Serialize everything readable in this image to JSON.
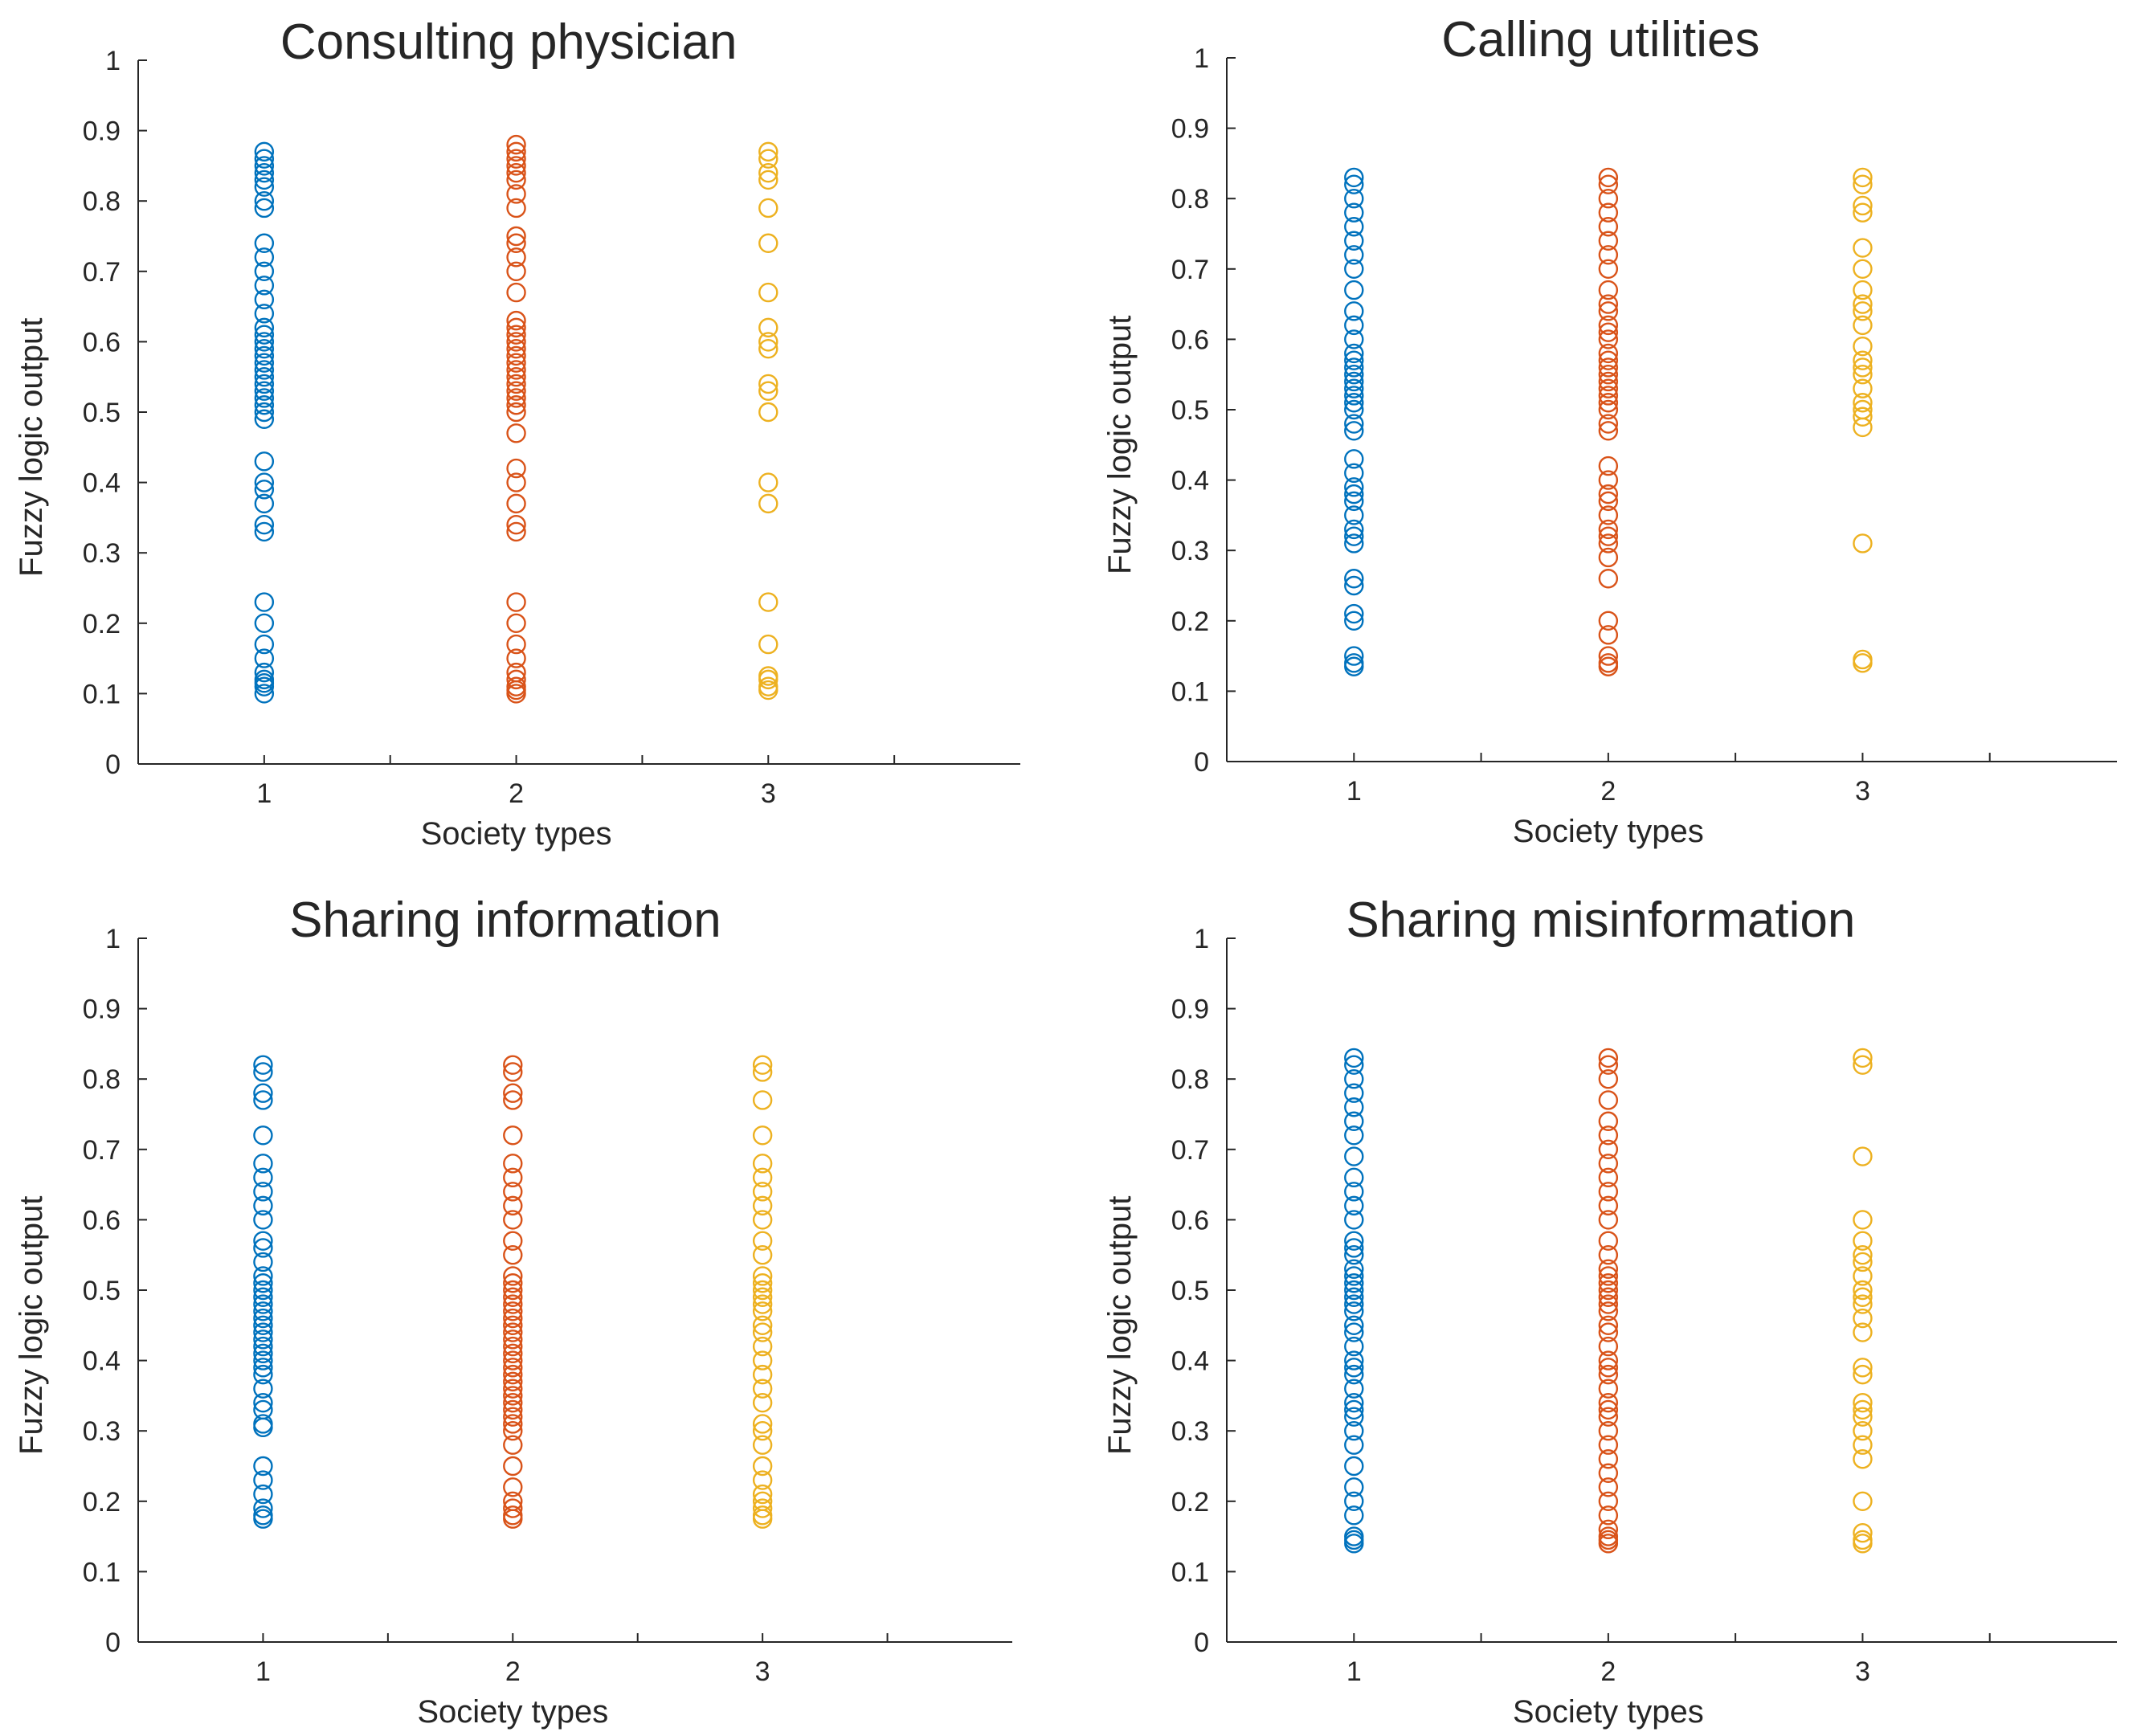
{
  "chart_data": [
    {
      "type": "scatter",
      "title": "Consulting physician",
      "xlabel": "Society types",
      "ylabel": "Fuzzy logic output",
      "xlim": [
        0.5,
        4
      ],
      "ylim": [
        0,
        1
      ],
      "xticks": [
        "1",
        "2",
        "3"
      ],
      "yticks": [
        "0",
        "0.1",
        "0.2",
        "0.3",
        "0.4",
        "0.5",
        "0.6",
        "0.7",
        "0.8",
        "0.9",
        "1"
      ],
      "series": [
        {
          "name": "1",
          "x": 1,
          "color": "#0072BD",
          "values": [
            0.1,
            0.11,
            0.115,
            0.12,
            0.13,
            0.15,
            0.17,
            0.2,
            0.23,
            0.33,
            0.34,
            0.37,
            0.39,
            0.4,
            0.43,
            0.49,
            0.5,
            0.51,
            0.52,
            0.53,
            0.54,
            0.55,
            0.56,
            0.57,
            0.58,
            0.59,
            0.6,
            0.61,
            0.62,
            0.64,
            0.66,
            0.68,
            0.7,
            0.72,
            0.74,
            0.79,
            0.8,
            0.82,
            0.83,
            0.84,
            0.85,
            0.86,
            0.87
          ]
        },
        {
          "name": "2",
          "x": 2,
          "color": "#D95319",
          "values": [
            0.1,
            0.105,
            0.11,
            0.12,
            0.13,
            0.15,
            0.17,
            0.2,
            0.23,
            0.33,
            0.34,
            0.37,
            0.4,
            0.42,
            0.47,
            0.5,
            0.51,
            0.52,
            0.53,
            0.54,
            0.55,
            0.56,
            0.57,
            0.58,
            0.59,
            0.6,
            0.61,
            0.62,
            0.63,
            0.67,
            0.7,
            0.72,
            0.74,
            0.75,
            0.79,
            0.81,
            0.83,
            0.84,
            0.85,
            0.86,
            0.87,
            0.88
          ]
        },
        {
          "name": "3",
          "x": 3,
          "color": "#EDB120",
          "values": [
            0.105,
            0.11,
            0.12,
            0.125,
            0.17,
            0.23,
            0.37,
            0.4,
            0.5,
            0.53,
            0.54,
            0.59,
            0.6,
            0.62,
            0.67,
            0.74,
            0.79,
            0.83,
            0.84,
            0.86,
            0.87
          ]
        }
      ]
    },
    {
      "type": "scatter",
      "title": "Calling utilities",
      "xlabel": "Society types",
      "ylabel": "Fuzzy logic output",
      "xlim": [
        0.5,
        4
      ],
      "ylim": [
        0,
        1
      ],
      "xticks": [
        "1",
        "2",
        "3"
      ],
      "yticks": [
        "0",
        "0.1",
        "0.2",
        "0.3",
        "0.4",
        "0.5",
        "0.6",
        "0.7",
        "0.8",
        "0.9",
        "1"
      ],
      "series": [
        {
          "name": "1",
          "x": 1,
          "color": "#0072BD",
          "values": [
            0.135,
            0.14,
            0.15,
            0.2,
            0.21,
            0.25,
            0.26,
            0.31,
            0.32,
            0.33,
            0.35,
            0.37,
            0.38,
            0.39,
            0.41,
            0.43,
            0.47,
            0.48,
            0.5,
            0.51,
            0.52,
            0.53,
            0.54,
            0.55,
            0.56,
            0.57,
            0.58,
            0.6,
            0.62,
            0.64,
            0.67,
            0.7,
            0.72,
            0.74,
            0.76,
            0.78,
            0.8,
            0.82,
            0.83
          ]
        },
        {
          "name": "2",
          "x": 2,
          "color": "#D95319",
          "values": [
            0.135,
            0.14,
            0.15,
            0.18,
            0.2,
            0.26,
            0.29,
            0.31,
            0.32,
            0.33,
            0.35,
            0.37,
            0.38,
            0.4,
            0.42,
            0.47,
            0.48,
            0.5,
            0.51,
            0.52,
            0.53,
            0.54,
            0.55,
            0.56,
            0.57,
            0.58,
            0.6,
            0.61,
            0.62,
            0.64,
            0.65,
            0.67,
            0.7,
            0.72,
            0.74,
            0.76,
            0.78,
            0.8,
            0.82,
            0.83
          ]
        },
        {
          "name": "3",
          "x": 3,
          "color": "#EDB120",
          "values": [
            0.14,
            0.145,
            0.31,
            0.475,
            0.49,
            0.5,
            0.51,
            0.53,
            0.55,
            0.56,
            0.57,
            0.59,
            0.62,
            0.64,
            0.65,
            0.67,
            0.7,
            0.73,
            0.78,
            0.79,
            0.82,
            0.83
          ]
        }
      ]
    },
    {
      "type": "scatter",
      "title": "Sharing information",
      "xlabel": "Society types",
      "ylabel": "Fuzzy logic output",
      "xlim": [
        0.5,
        4
      ],
      "ylim": [
        0,
        1
      ],
      "xticks": [
        "1",
        "2",
        "3"
      ],
      "yticks": [
        "0",
        "0.1",
        "0.2",
        "0.3",
        "0.4",
        "0.5",
        "0.6",
        "0.7",
        "0.8",
        "0.9",
        "1"
      ],
      "series": [
        {
          "name": "1",
          "x": 1,
          "color": "#0072BD",
          "values": [
            0.175,
            0.18,
            0.19,
            0.21,
            0.23,
            0.25,
            0.305,
            0.31,
            0.33,
            0.34,
            0.36,
            0.38,
            0.39,
            0.4,
            0.41,
            0.42,
            0.43,
            0.44,
            0.45,
            0.46,
            0.47,
            0.48,
            0.49,
            0.5,
            0.51,
            0.52,
            0.54,
            0.56,
            0.57,
            0.6,
            0.62,
            0.64,
            0.66,
            0.68,
            0.72,
            0.77,
            0.78,
            0.81,
            0.82
          ]
        },
        {
          "name": "2",
          "x": 2,
          "color": "#D95319",
          "values": [
            0.175,
            0.18,
            0.19,
            0.2,
            0.22,
            0.25,
            0.28,
            0.3,
            0.31,
            0.32,
            0.33,
            0.34,
            0.35,
            0.36,
            0.37,
            0.38,
            0.39,
            0.4,
            0.41,
            0.42,
            0.43,
            0.44,
            0.45,
            0.46,
            0.47,
            0.48,
            0.49,
            0.5,
            0.51,
            0.52,
            0.55,
            0.57,
            0.6,
            0.62,
            0.64,
            0.66,
            0.68,
            0.72,
            0.77,
            0.78,
            0.81,
            0.82
          ]
        },
        {
          "name": "3",
          "x": 3,
          "color": "#EDB120",
          "values": [
            0.175,
            0.18,
            0.19,
            0.2,
            0.21,
            0.23,
            0.25,
            0.28,
            0.3,
            0.31,
            0.34,
            0.36,
            0.38,
            0.4,
            0.42,
            0.44,
            0.45,
            0.47,
            0.48,
            0.49,
            0.5,
            0.51,
            0.52,
            0.55,
            0.57,
            0.6,
            0.62,
            0.64,
            0.66,
            0.68,
            0.72,
            0.77,
            0.81,
            0.82
          ]
        }
      ]
    },
    {
      "type": "scatter",
      "title": "Sharing misinformation",
      "xlabel": "Society types",
      "ylabel": "Fuzzy logic output",
      "xlim": [
        0.5,
        4
      ],
      "ylim": [
        0,
        1
      ],
      "xticks": [
        "1",
        "2",
        "3"
      ],
      "yticks": [
        "0",
        "0.1",
        "0.2",
        "0.3",
        "0.4",
        "0.5",
        "0.6",
        "0.7",
        "0.8",
        "0.9",
        "1"
      ],
      "series": [
        {
          "name": "1",
          "x": 1,
          "color": "#0072BD",
          "values": [
            0.14,
            0.145,
            0.15,
            0.18,
            0.2,
            0.22,
            0.25,
            0.28,
            0.3,
            0.32,
            0.33,
            0.34,
            0.36,
            0.38,
            0.39,
            0.4,
            0.42,
            0.44,
            0.45,
            0.47,
            0.48,
            0.49,
            0.5,
            0.51,
            0.52,
            0.53,
            0.55,
            0.56,
            0.57,
            0.6,
            0.62,
            0.64,
            0.66,
            0.69,
            0.72,
            0.74,
            0.76,
            0.78,
            0.8,
            0.82,
            0.83
          ]
        },
        {
          "name": "2",
          "x": 2,
          "color": "#D95319",
          "values": [
            0.14,
            0.145,
            0.15,
            0.16,
            0.18,
            0.2,
            0.22,
            0.24,
            0.26,
            0.28,
            0.3,
            0.32,
            0.33,
            0.34,
            0.36,
            0.38,
            0.39,
            0.4,
            0.42,
            0.44,
            0.45,
            0.47,
            0.48,
            0.49,
            0.5,
            0.51,
            0.52,
            0.53,
            0.55,
            0.57,
            0.6,
            0.62,
            0.64,
            0.66,
            0.68,
            0.7,
            0.72,
            0.74,
            0.77,
            0.8,
            0.82,
            0.83
          ]
        },
        {
          "name": "3",
          "x": 3,
          "color": "#EDB120",
          "values": [
            0.14,
            0.145,
            0.155,
            0.2,
            0.26,
            0.28,
            0.3,
            0.32,
            0.33,
            0.34,
            0.38,
            0.39,
            0.44,
            0.46,
            0.48,
            0.49,
            0.5,
            0.52,
            0.54,
            0.55,
            0.57,
            0.6,
            0.69,
            0.82,
            0.83
          ]
        }
      ]
    }
  ]
}
